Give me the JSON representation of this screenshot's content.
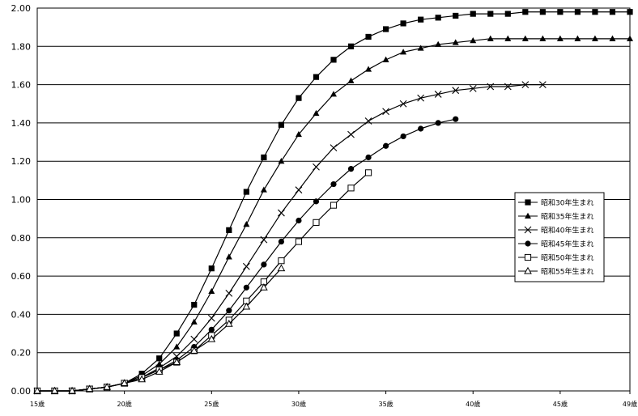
{
  "chart_data": {
    "type": "line",
    "title": "",
    "xlabel": "",
    "ylabel": "",
    "x": [
      15,
      16,
      17,
      18,
      19,
      20,
      21,
      22,
      23,
      24,
      25,
      26,
      27,
      28,
      29,
      30,
      31,
      32,
      33,
      34,
      35,
      36,
      37,
      38,
      39,
      40,
      41,
      42,
      43,
      44,
      45,
      46,
      47,
      48,
      49
    ],
    "xlim": [
      15,
      49
    ],
    "ylim": [
      0,
      2.0
    ],
    "xticks": [
      15,
      20,
      25,
      30,
      35,
      40,
      45,
      49
    ],
    "xtick_labels": [
      "15歳",
      "20歳",
      "25歳",
      "30歳",
      "35歳",
      "40歳",
      "45歳",
      "49歳"
    ],
    "yticks": [
      "0.00",
      "0.20",
      "0.40",
      "0.60",
      "0.80",
      "1.00",
      "1.20",
      "1.40",
      "1.60",
      "1.80",
      "2.00"
    ],
    "grid": "horizontal",
    "legend_position": "right",
    "series": [
      {
        "name": "昭和30年生まれ",
        "marker": "filled-square",
        "values": [
          0,
          0,
          0,
          0.01,
          0.02,
          0.04,
          0.09,
          0.17,
          0.3,
          0.45,
          0.64,
          0.84,
          1.04,
          1.22,
          1.39,
          1.53,
          1.64,
          1.73,
          1.8,
          1.85,
          1.89,
          1.92,
          1.94,
          1.95,
          1.96,
          1.97,
          1.97,
          1.97,
          1.98,
          1.98,
          1.98,
          1.98,
          1.98,
          1.98,
          1.98
        ]
      },
      {
        "name": "昭和35年生まれ",
        "marker": "filled-triangle",
        "values": [
          0,
          0,
          0,
          0.01,
          0.02,
          0.04,
          0.08,
          0.14,
          0.23,
          0.36,
          0.52,
          0.7,
          0.87,
          1.05,
          1.2,
          1.34,
          1.45,
          1.55,
          1.62,
          1.68,
          1.73,
          1.77,
          1.79,
          1.81,
          1.82,
          1.83,
          1.84,
          1.84,
          1.84,
          1.84,
          1.84,
          1.84,
          1.84,
          1.84,
          1.84
        ]
      },
      {
        "name": "昭和40年生まれ",
        "marker": "x",
        "values": [
          0,
          0,
          0,
          0.01,
          0.02,
          0.04,
          0.07,
          0.12,
          0.18,
          0.27,
          0.38,
          0.51,
          0.65,
          0.79,
          0.93,
          1.05,
          1.17,
          1.27,
          1.34,
          1.41,
          1.46,
          1.5,
          1.53,
          1.55,
          1.57,
          1.58,
          1.59,
          1.59,
          1.6,
          1.6,
          null,
          null,
          null,
          null,
          null
        ]
      },
      {
        "name": "昭和45年生まれ",
        "marker": "filled-circle",
        "values": [
          0,
          0,
          0,
          0.01,
          0.02,
          0.04,
          0.07,
          0.11,
          0.16,
          0.23,
          0.32,
          0.42,
          0.54,
          0.66,
          0.78,
          0.89,
          0.99,
          1.08,
          1.16,
          1.22,
          1.28,
          1.33,
          1.37,
          1.4,
          1.42,
          null,
          null,
          null,
          null,
          null,
          null,
          null,
          null,
          null,
          null
        ]
      },
      {
        "name": "昭和50年生まれ",
        "marker": "open-square",
        "values": [
          0,
          0,
          0,
          0.01,
          0.02,
          0.04,
          0.07,
          0.11,
          0.15,
          0.21,
          0.29,
          0.37,
          0.47,
          0.57,
          0.68,
          0.78,
          0.88,
          0.97,
          1.06,
          1.14,
          null,
          null,
          null,
          null,
          null,
          null,
          null,
          null,
          null,
          null,
          null,
          null,
          null,
          null,
          null
        ]
      },
      {
        "name": "昭和55年生まれ",
        "marker": "open-triangle",
        "values": [
          0,
          0,
          0,
          0.01,
          0.02,
          0.04,
          0.06,
          0.1,
          0.15,
          0.21,
          0.27,
          0.35,
          0.44,
          0.54,
          0.64,
          null,
          null,
          null,
          null,
          null,
          null,
          null,
          null,
          null,
          null,
          null,
          null,
          null,
          null,
          null,
          null,
          null,
          null,
          null,
          null
        ]
      }
    ]
  }
}
